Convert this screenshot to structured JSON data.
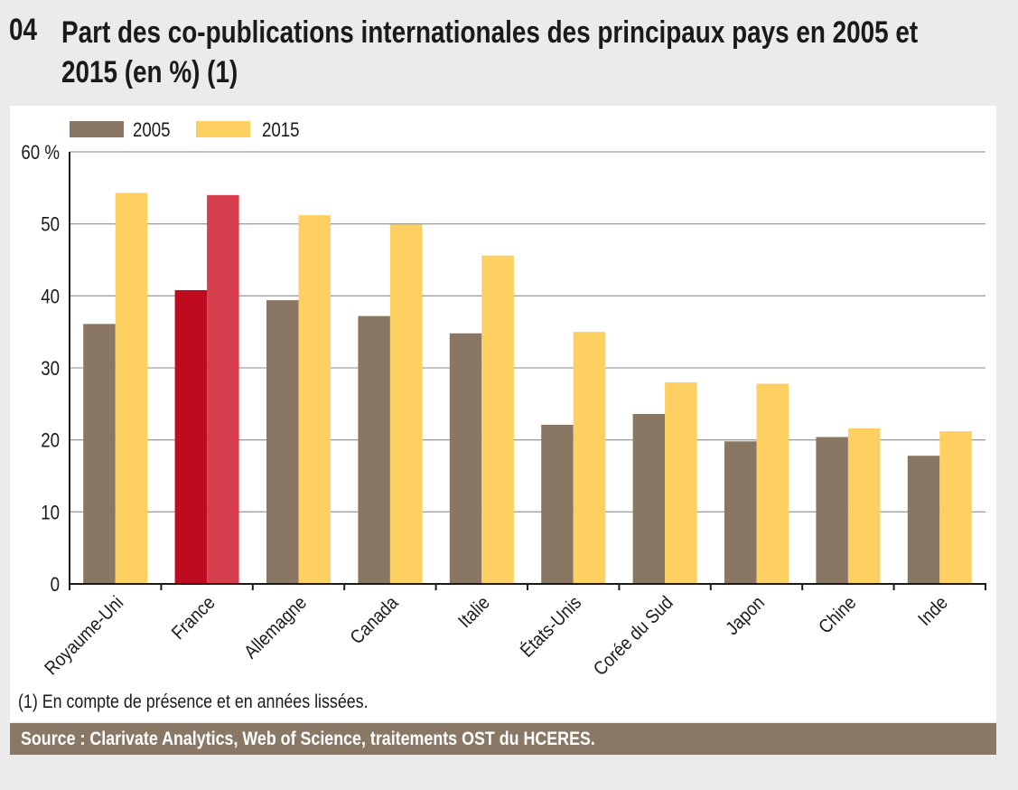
{
  "figure": {
    "number": "04",
    "title": "Part des co-publications internationales des principaux pays en 2005 et 2015 (en %) (1)",
    "note": "(1) En compte de présence et en années lissées.",
    "source": "Source : Clarivate Analytics, Web of Science, traitements OST du HCERES."
  },
  "colors": {
    "series_2005": "#8a7763",
    "series_2015": "#fdd061",
    "highlight_2005": "#be0b1f",
    "highlight_2015": "#d63e4d",
    "grid": "#a0a0a0",
    "axis": "#1a1a1a"
  },
  "chart_data": {
    "type": "bar",
    "title": "Part des co-publications internationales des principaux pays en 2005 et 2015 (en %) (1)",
    "xlabel": "",
    "ylabel": "",
    "ylim": [
      0,
      60
    ],
    "yticks": [
      0,
      10,
      20,
      30,
      40,
      50,
      60
    ],
    "ytick_labels": [
      "0",
      "10",
      "20",
      "30",
      "40",
      "50",
      "60 %"
    ],
    "grid": true,
    "legend_position": "top-left",
    "highlight_category": "France",
    "categories": [
      "Royaume-Uni",
      "France",
      "Allemagne",
      "Canada",
      "Italie",
      "États-Unis",
      "Corée du Sud",
      "Japon",
      "Chine",
      "Inde"
    ],
    "series": [
      {
        "name": "2005",
        "values": [
          36.1,
          40.8,
          39.4,
          37.2,
          34.8,
          22.1,
          23.6,
          19.8,
          20.4,
          17.8
        ]
      },
      {
        "name": "2015",
        "values": [
          54.3,
          54.0,
          51.2,
          49.9,
          45.6,
          35.0,
          28.0,
          27.8,
          21.6,
          21.2
        ]
      }
    ]
  }
}
